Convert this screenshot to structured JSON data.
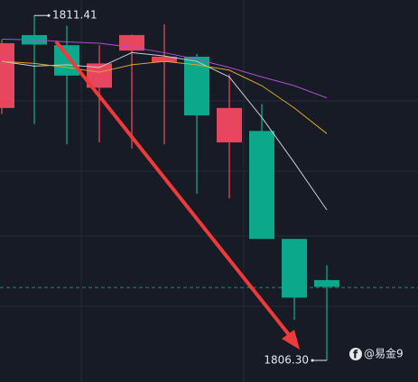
{
  "chart_data": {
    "type": "candlestick",
    "up_color": "#e8465e",
    "down_color": "#0ca88c",
    "ylim": [
      1805.98,
      1811.64
    ],
    "candles": [
      {
        "open": 1810.04,
        "high": 1811.05,
        "low": 1809.95,
        "close": 1811.0
      },
      {
        "open": 1811.12,
        "high": 1811.41,
        "low": 1809.8,
        "close": 1810.98
      },
      {
        "open": 1810.97,
        "high": 1811.26,
        "low": 1809.5,
        "close": 1810.52
      },
      {
        "open": 1810.34,
        "high": 1810.97,
        "low": 1809.53,
        "close": 1810.7
      },
      {
        "open": 1810.89,
        "high": 1811.13,
        "low": 1809.44,
        "close": 1811.12
      },
      {
        "open": 1810.72,
        "high": 1811.28,
        "low": 1809.5,
        "close": 1810.8
      },
      {
        "open": 1810.8,
        "high": 1810.84,
        "low": 1808.77,
        "close": 1809.93
      },
      {
        "open": 1809.53,
        "high": 1810.54,
        "low": 1808.7,
        "close": 1810.04
      },
      {
        "open": 1809.7,
        "high": 1810.1,
        "low": 1808.1,
        "close": 1808.1
      },
      {
        "open": 1808.1,
        "high": 1808.1,
        "low": 1806.9,
        "close": 1807.23
      },
      {
        "open": 1807.49,
        "high": 1807.71,
        "low": 1806.3,
        "close": 1807.39
      }
    ],
    "series": [
      {
        "color": "#c8ccd4",
        "values": [
          1810.73,
          1810.66,
          1810.68,
          1810.64,
          1810.86,
          1810.81,
          1810.73,
          1810.5,
          1809.9,
          1809.23,
          1808.53
        ]
      },
      {
        "color": "#e0a526",
        "values": [
          1810.73,
          1810.7,
          1810.64,
          1810.57,
          1810.68,
          1810.73,
          1810.68,
          1810.6,
          1810.37,
          1810.04,
          1809.66
        ]
      },
      {
        "color": "#b04ccc",
        "values": [
          1811.06,
          1811.05,
          1811.02,
          1811.0,
          1810.94,
          1810.86,
          1810.76,
          1810.64,
          1810.5,
          1810.37,
          1810.19
        ]
      }
    ],
    "current_price": 1807.38,
    "annotations": [
      {
        "label": "1811.41",
        "value": 1811.41
      },
      {
        "label": "1806.30",
        "value": 1806.3
      }
    ],
    "watermark": "@易金9"
  }
}
